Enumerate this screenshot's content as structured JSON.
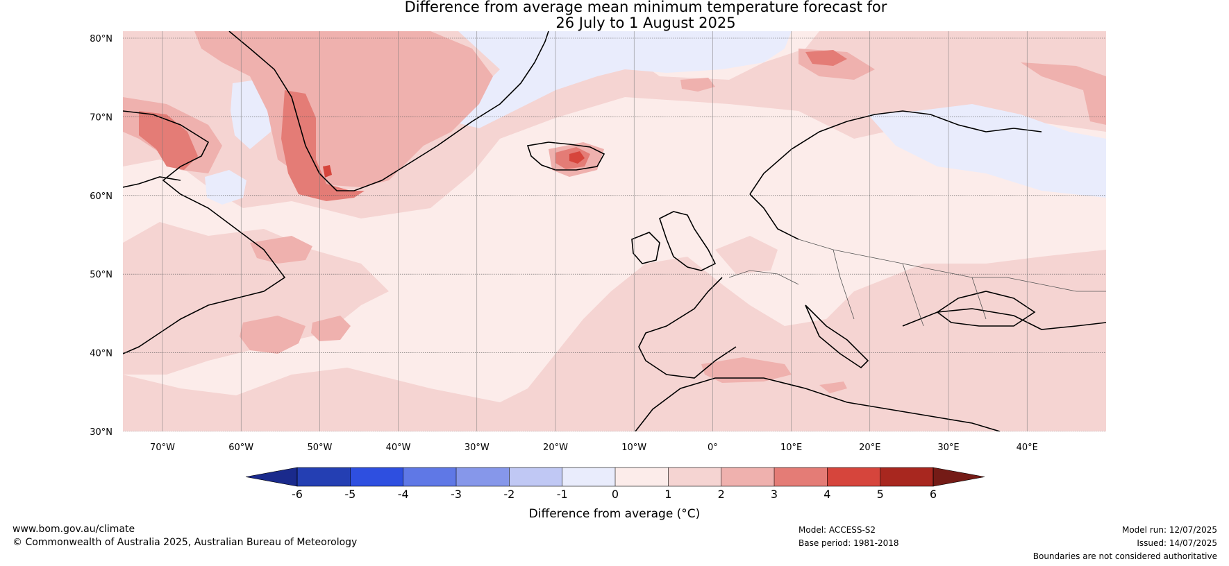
{
  "title": {
    "line1": "Difference from average mean minimum temperature forecast for",
    "line2": "26 July to 1 August 2025"
  },
  "map": {
    "lat_labels": [
      "80°N",
      "70°N",
      "60°N",
      "50°N",
      "40°N",
      "30°N"
    ],
    "lon_labels": [
      "70°W",
      "60°W",
      "50°W",
      "40°W",
      "30°W",
      "20°W",
      "10°W",
      "0°",
      "10°E",
      "20°E",
      "30°E",
      "40°E"
    ],
    "extent": {
      "lon_min": -75,
      "lon_max": 50,
      "lat_min": 30,
      "lat_max": 81
    },
    "gridlines": true
  },
  "colorbar": {
    "label": "Difference from average (°C)",
    "ticks": [
      "-6",
      "-5",
      "-4",
      "-3",
      "-2",
      "-1",
      "0",
      "1",
      "2",
      "3",
      "4",
      "5",
      "6"
    ],
    "colors": [
      "#1a2a8c",
      "#243fb3",
      "#2e4fe0",
      "#5f78e6",
      "#8697ea",
      "#c0c8f4",
      "#e9ecfc",
      "#fcecea",
      "#f5d4d2",
      "#efb1ae",
      "#e47c76",
      "#d6453c",
      "#a8271f",
      "#741b16"
    ]
  },
  "footer": {
    "url": "www.bom.gov.au/climate",
    "copyright": "© Commonwealth of Australia 2025, Australian Bureau of Meteorology",
    "model": "Model: ACCESS-S2",
    "base_period": "Base period: 1981-2018",
    "model_run": "Model run: 12/07/2025",
    "issued": "Issued: 14/07/2025",
    "disclaimer": "Boundaries are not considered authoritative"
  }
}
